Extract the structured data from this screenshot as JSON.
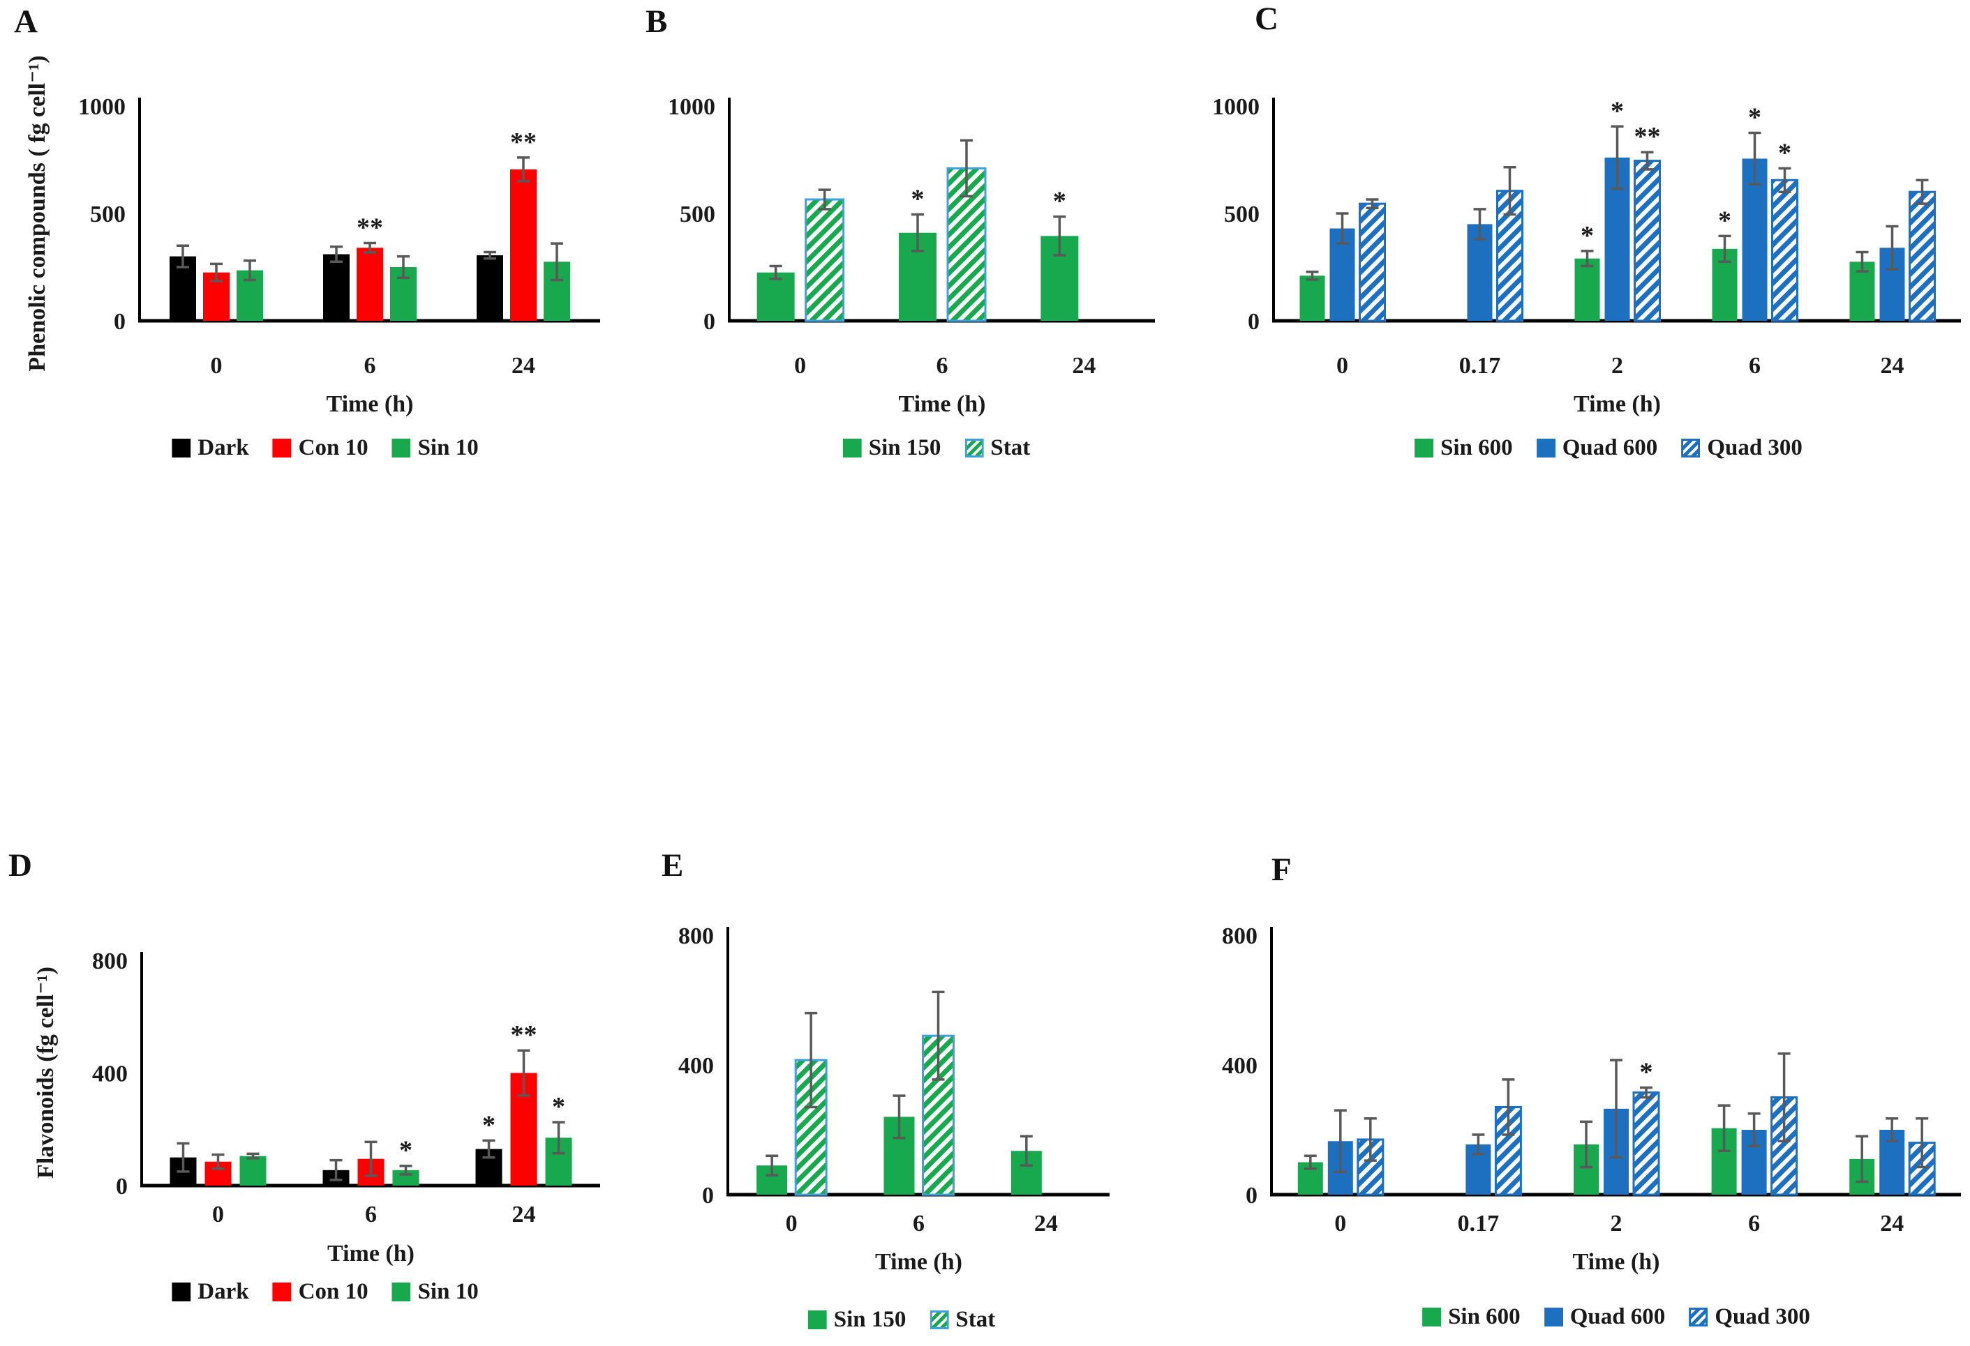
{
  "figure_title": "",
  "colors": {
    "black": "#000000",
    "red": "#FE0000",
    "green": "#18A94E",
    "blue": "#1D6FC0",
    "hatch_border_blue": "#3FA0DC",
    "error_bar": "#595959",
    "text": "#1A1A1A",
    "background": "#FFFFFF"
  },
  "chart_data": [
    {
      "panel": "A",
      "type": "bar",
      "ylabel": "Phenolic compounds ( fg cell⁻¹)",
      "xlabel": "Time (h)",
      "ylim": [
        0,
        1000
      ],
      "yticks": [
        0,
        500,
        1000
      ],
      "categories": [
        "0",
        "6",
        "24"
      ],
      "legend_position": "bottom",
      "grid": false,
      "series": [
        {
          "name": "Dark",
          "style": "solid-black",
          "values": [
            300,
            310,
            305
          ],
          "errors": [
            50,
            35,
            15
          ],
          "sig": [
            "",
            "",
            ""
          ]
        },
        {
          "name": "Con 10",
          "style": "solid-red",
          "values": [
            225,
            340,
            705
          ],
          "errors": [
            40,
            22,
            55
          ],
          "sig": [
            "",
            "**",
            "**"
          ]
        },
        {
          "name": "Sin 10",
          "style": "solid-green",
          "values": [
            235,
            250,
            275
          ],
          "errors": [
            45,
            50,
            85
          ],
          "sig": [
            "",
            "",
            ""
          ]
        }
      ]
    },
    {
      "panel": "B",
      "type": "bar",
      "ylabel": "",
      "xlabel": "Time (h)",
      "ylim": [
        0,
        1000
      ],
      "yticks": [
        0,
        500,
        1000
      ],
      "categories": [
        "0",
        "6",
        "24"
      ],
      "legend_position": "bottom",
      "grid": false,
      "series": [
        {
          "name": "Sin 150",
          "style": "solid-green",
          "values": [
            225,
            410,
            395
          ],
          "errors": [
            30,
            85,
            90
          ],
          "sig": [
            "",
            "*",
            "*"
          ]
        },
        {
          "name": "Stat",
          "style": "hatch-green",
          "values": [
            565,
            710,
            null
          ],
          "errors": [
            45,
            130,
            null
          ],
          "sig": [
            "",
            "",
            ""
          ]
        }
      ]
    },
    {
      "panel": "C",
      "type": "bar",
      "ylabel": "",
      "xlabel": "Time (h)",
      "ylim": [
        0,
        1000
      ],
      "yticks": [
        0,
        500,
        1000
      ],
      "categories": [
        "0",
        "0.17",
        "2",
        "6",
        "24"
      ],
      "legend_position": "bottom",
      "grid": false,
      "series": [
        {
          "name": "Sin 600",
          "style": "solid-green",
          "values": [
            210,
            null,
            290,
            335,
            275
          ],
          "errors": [
            18,
            null,
            35,
            60,
            45
          ],
          "sig": [
            "",
            "",
            "*",
            "*",
            ""
          ]
        },
        {
          "name": "Quad 600",
          "style": "solid-blue",
          "values": [
            430,
            450,
            760,
            755,
            340
          ],
          "errors": [
            70,
            70,
            145,
            120,
            100
          ],
          "sig": [
            "",
            "",
            "*",
            "*",
            ""
          ]
        },
        {
          "name": "Quad 300",
          "style": "hatch-blue",
          "values": [
            545,
            605,
            745,
            655,
            600
          ],
          "errors": [
            20,
            110,
            40,
            55,
            55
          ],
          "sig": [
            "",
            "",
            "**",
            "*",
            ""
          ]
        }
      ]
    },
    {
      "panel": "D",
      "type": "bar",
      "ylabel": "Flavonoids (fg cell⁻¹)",
      "xlabel": "Time (h)",
      "ylim": [
        0,
        800
      ],
      "yticks": [
        0,
        400,
        800
      ],
      "categories": [
        "0",
        "6",
        "24"
      ],
      "legend_position": "bottom",
      "grid": false,
      "series": [
        {
          "name": "Dark",
          "style": "solid-black",
          "values": [
            100,
            55,
            130
          ],
          "errors": [
            50,
            35,
            30
          ],
          "sig": [
            "",
            "",
            "*"
          ]
        },
        {
          "name": "Con 10",
          "style": "solid-red",
          "values": [
            85,
            95,
            400
          ],
          "errors": [
            25,
            60,
            80
          ],
          "sig": [
            "",
            "",
            "**"
          ]
        },
        {
          "name": "Sin 10",
          "style": "solid-green",
          "values": [
            105,
            55,
            170
          ],
          "errors": [
            8,
            15,
            55
          ],
          "sig": [
            "",
            "*",
            "*"
          ]
        }
      ]
    },
    {
      "panel": "E",
      "type": "bar",
      "ylabel": "",
      "xlabel": "Time (h)",
      "ylim": [
        0,
        800
      ],
      "yticks": [
        0,
        400,
        800
      ],
      "categories": [
        "0",
        "6",
        "24"
      ],
      "legend_position": "bottom",
      "grid": false,
      "series": [
        {
          "name": "Sin 150",
          "style": "solid-green",
          "values": [
            90,
            240,
            135
          ],
          "errors": [
            30,
            65,
            45
          ],
          "sig": [
            "",
            "",
            ""
          ]
        },
        {
          "name": "Stat",
          "style": "hatch-green",
          "values": [
            415,
            490,
            null
          ],
          "errors": [
            145,
            135,
            null
          ],
          "sig": [
            "",
            "",
            ""
          ]
        }
      ]
    },
    {
      "panel": "F",
      "type": "bar",
      "ylabel": "",
      "xlabel": "Time (h)",
      "ylim": [
        0,
        800
      ],
      "yticks": [
        0,
        400,
        800
      ],
      "categories": [
        "0",
        "0.17",
        "2",
        "6",
        "24"
      ],
      "legend_position": "bottom",
      "grid": false,
      "series": [
        {
          "name": "Sin 600",
          "style": "solid-green",
          "values": [
            100,
            null,
            155,
            205,
            110
          ],
          "errors": [
            20,
            null,
            70,
            70,
            70
          ],
          "sig": [
            "",
            "",
            "",
            "",
            ""
          ]
        },
        {
          "name": "Quad 600",
          "style": "solid-blue",
          "values": [
            165,
            155,
            265,
            200,
            200
          ],
          "errors": [
            95,
            30,
            150,
            50,
            35
          ],
          "sig": [
            "",
            "",
            "",
            "",
            ""
          ]
        },
        {
          "name": "Quad 300",
          "style": "hatch-blue",
          "values": [
            170,
            270,
            315,
            300,
            160
          ],
          "errors": [
            65,
            85,
            15,
            135,
            75
          ],
          "sig": [
            "",
            "",
            "*",
            "",
            ""
          ]
        }
      ]
    }
  ]
}
